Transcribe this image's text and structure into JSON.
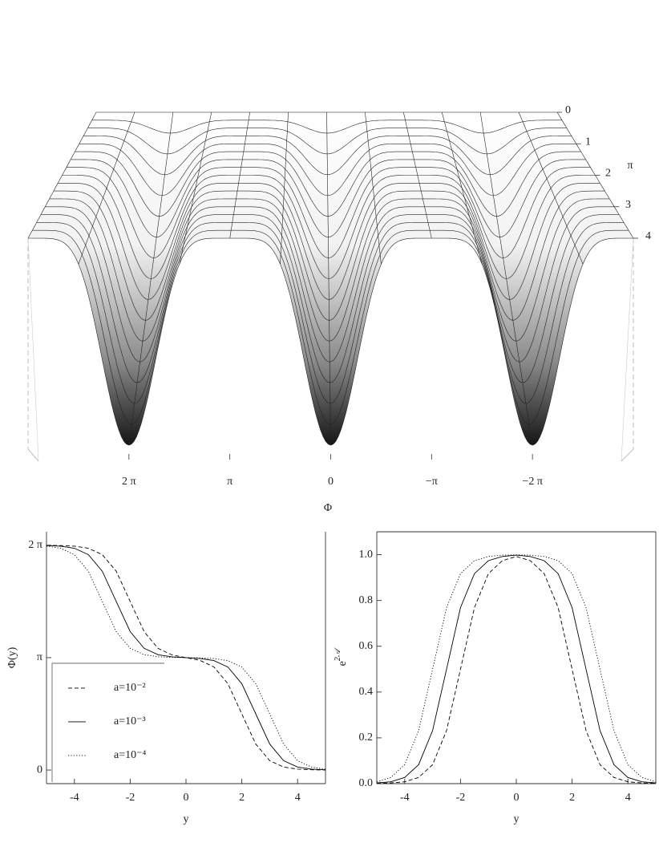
{
  "chart_data": [
    {
      "type": "surface",
      "xlabel": "Φ",
      "depth_label": "π",
      "xlim": [
        9.4248,
        -9.4248
      ],
      "xticks": [
        {
          "value": 6.2832,
          "label": "2 π"
        },
        {
          "value": 3.1416,
          "label": "π"
        },
        0,
        {
          "value": -3.1416,
          "label": "−π"
        },
        {
          "value": -6.2832,
          "label": "−2 π"
        }
      ],
      "depthlim": [
        0,
        4
      ],
      "depth_ticks": [
        0,
        1,
        2,
        3,
        4
      ]
    },
    {
      "type": "line",
      "xlabel": "y",
      "ylabel": "Φ(y)",
      "xlim": [
        -5,
        5
      ],
      "xticks": [
        -4,
        -2,
        0,
        2,
        4
      ],
      "ylim": [
        -0.38,
        6.66
      ],
      "yticks": [
        0,
        {
          "value": 3.1416,
          "label": "π"
        },
        {
          "value": 6.2832,
          "label": "2 π"
        }
      ],
      "legend": "lower left",
      "x": [
        -5,
        -4.5,
        -4,
        -3.5,
        -3,
        -2.5,
        -2,
        -1.5,
        -1,
        -0.5,
        0,
        0.5,
        1,
        1.5,
        2,
        2.5,
        3,
        3.5,
        4,
        4.5,
        5
      ],
      "series": [
        {
          "name": "a=10⁻²",
          "color": "#000000",
          "dash": "dashed",
          "values": [
            6.281,
            6.275,
            6.258,
            6.2,
            6.022,
            5.556,
            4.712,
            3.868,
            3.4,
            3.217,
            3.142,
            3.066,
            2.883,
            2.415,
            1.571,
            0.727,
            0.261,
            0.083,
            0.025,
            0.008,
            0.002
          ]
        },
        {
          "name": "a=10⁻³",
          "color": "#000000",
          "dash": "solid",
          "values": [
            6.275,
            6.258,
            6.2,
            6.022,
            5.556,
            4.712,
            3.869,
            3.402,
            3.224,
            3.164,
            3.142,
            3.119,
            3.059,
            2.881,
            2.414,
            1.571,
            0.727,
            0.261,
            0.083,
            0.025,
            0.008
          ]
        },
        {
          "name": "a=10⁻⁴",
          "color": "#000000",
          "dash": "dotted",
          "values": [
            6.258,
            6.2,
            6.022,
            5.556,
            4.712,
            3.869,
            3.402,
            3.225,
            3.166,
            3.149,
            3.142,
            3.134,
            3.117,
            3.058,
            2.881,
            2.414,
            1.571,
            0.727,
            0.261,
            0.083,
            0.025
          ]
        }
      ]
    },
    {
      "type": "line",
      "xlabel": "y",
      "ylabel": "e",
      "ylabel_superscript": "2𝒜",
      "xlim": [
        -5,
        5
      ],
      "xticks": [
        -4,
        -2,
        0,
        2,
        4
      ],
      "ylim": [
        0,
        1.1
      ],
      "yticks": [
        {
          "value": 0,
          "label": "0.0"
        },
        0.2,
        0.4,
        0.6,
        0.8,
        {
          "value": 1,
          "label": "1.0"
        }
      ],
      "x": [
        -5,
        -4.5,
        -4,
        -3.5,
        -3,
        -2.5,
        -2,
        -1.5,
        -1,
        -0.5,
        0,
        0.5,
        1,
        1.5,
        2,
        2.5,
        3,
        3.5,
        4,
        4.5,
        5
      ],
      "series": [
        {
          "color": "#000000",
          "dash": "dashed",
          "values": [
            0.001,
            0.003,
            0.008,
            0.027,
            0.083,
            0.232,
            0.5,
            0.769,
            0.917,
            0.974,
            0.992,
            0.974,
            0.917,
            0.769,
            0.5,
            0.232,
            0.083,
            0.027,
            0.008,
            0.003,
            0.001
          ]
        },
        {
          "color": "#000000",
          "dash": "solid",
          "values": [
            0.003,
            0.008,
            0.027,
            0.083,
            0.232,
            0.5,
            0.769,
            0.917,
            0.974,
            0.992,
            0.998,
            0.992,
            0.974,
            0.917,
            0.769,
            0.5,
            0.232,
            0.083,
            0.027,
            0.008,
            0.003
          ]
        },
        {
          "color": "#000000",
          "dash": "dotted",
          "values": [
            0.008,
            0.027,
            0.083,
            0.232,
            0.5,
            0.769,
            0.917,
            0.974,
            0.992,
            0.998,
            0.999,
            0.998,
            0.992,
            0.974,
            0.917,
            0.769,
            0.5,
            0.232,
            0.083,
            0.027,
            0.008
          ]
        }
      ]
    }
  ]
}
